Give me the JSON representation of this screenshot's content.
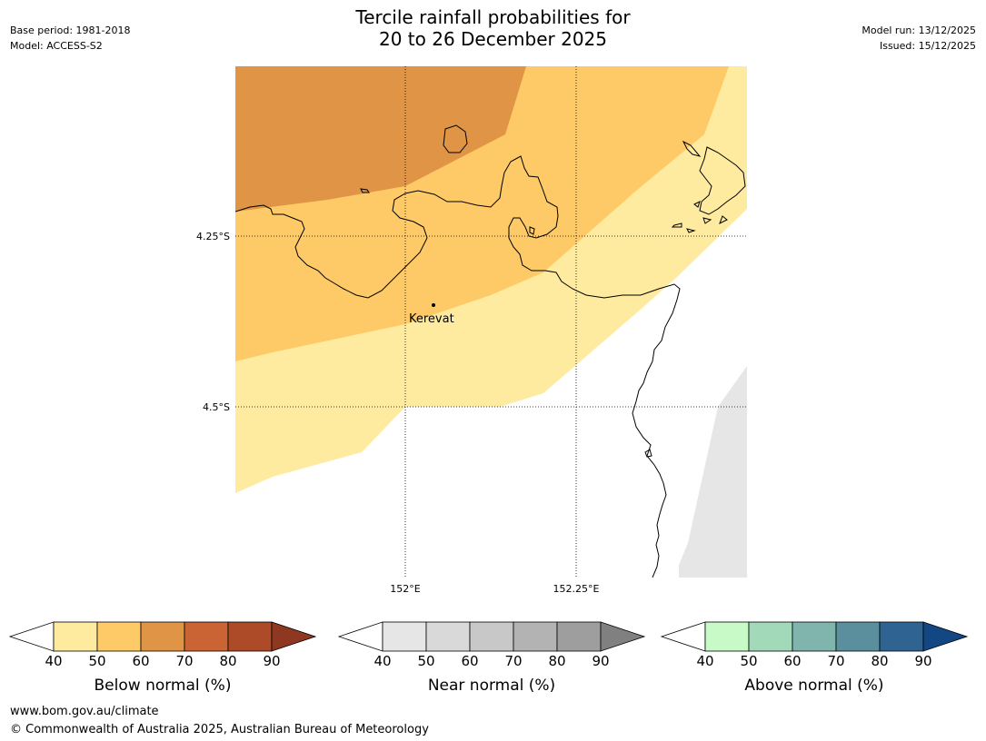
{
  "header": {
    "base_period": "Base period: 1981-2018",
    "model": "Model: ACCESS-S2",
    "model_run": "Model run: 13/12/2025",
    "issued": "Issued: 15/12/2025"
  },
  "title": {
    "line1": "Tercile rainfall probabilities for",
    "line2": "20 to 26 December 2025"
  },
  "map": {
    "lat_labels": [
      "4.25°S",
      "4.5°S"
    ],
    "lon_labels": [
      "152°E",
      "152.25°E"
    ],
    "place": "Kerevat",
    "colors": {
      "below_60_70": "#e09445",
      "below_50_60": "#fdca67",
      "below_40_50": "#feeb9f",
      "near_40_50": "#e6e6e6",
      "coast": "#000000"
    }
  },
  "legend": {
    "ticks": [
      "40",
      "50",
      "60",
      "70",
      "80",
      "90"
    ],
    "below": {
      "label": "Below normal (%)",
      "colors": [
        "#feeb9f",
        "#fdca67",
        "#e09445",
        "#cb6434",
        "#ad4a27",
        "#8e3821"
      ]
    },
    "near": {
      "label": "Near normal (%)",
      "colors": [
        "#e6e6e6",
        "#d9d9d9",
        "#c8c8c8",
        "#b3b3b3",
        "#9e9e9e",
        "#808080"
      ]
    },
    "above": {
      "label": "Above normal (%)",
      "colors": [
        "#c8fac8",
        "#a2d9b8",
        "#80b5ae",
        "#5b8f9e",
        "#2e6392",
        "#134784"
      ]
    }
  },
  "footer": {
    "url": "www.bom.gov.au/climate",
    "copyright": "© Commonwealth of Australia 2025, Australian Bureau of Meteorology"
  }
}
